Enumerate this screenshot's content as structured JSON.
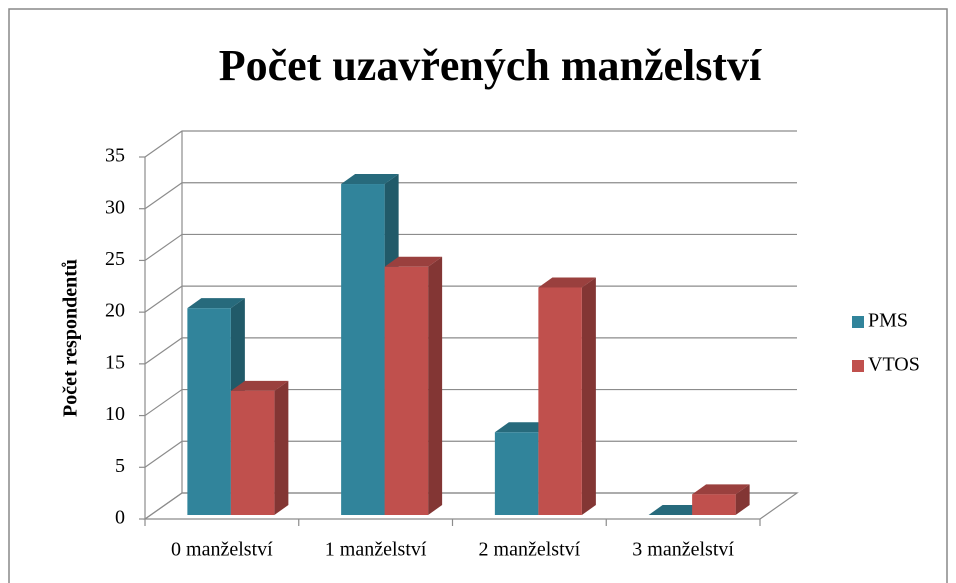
{
  "chart_data": {
    "type": "bar3d",
    "title": "Počet uzavřených manželství",
    "y_label": "Počet respondentů",
    "categories": [
      "0 manželství",
      "1 manželství",
      "2 manželství",
      "3 manželství"
    ],
    "series": [
      {
        "name": "PMS",
        "color": "#31849b",
        "values": [
          20,
          32,
          8,
          0
        ]
      },
      {
        "name": "VTOS",
        "color": "#c0504d",
        "values": [
          12,
          24,
          22,
          2
        ]
      }
    ],
    "ylim": [
      0,
      35
    ],
    "yticks": [
      0,
      5,
      10,
      15,
      20,
      25,
      30,
      35
    ],
    "grid": true,
    "legend": "right"
  }
}
